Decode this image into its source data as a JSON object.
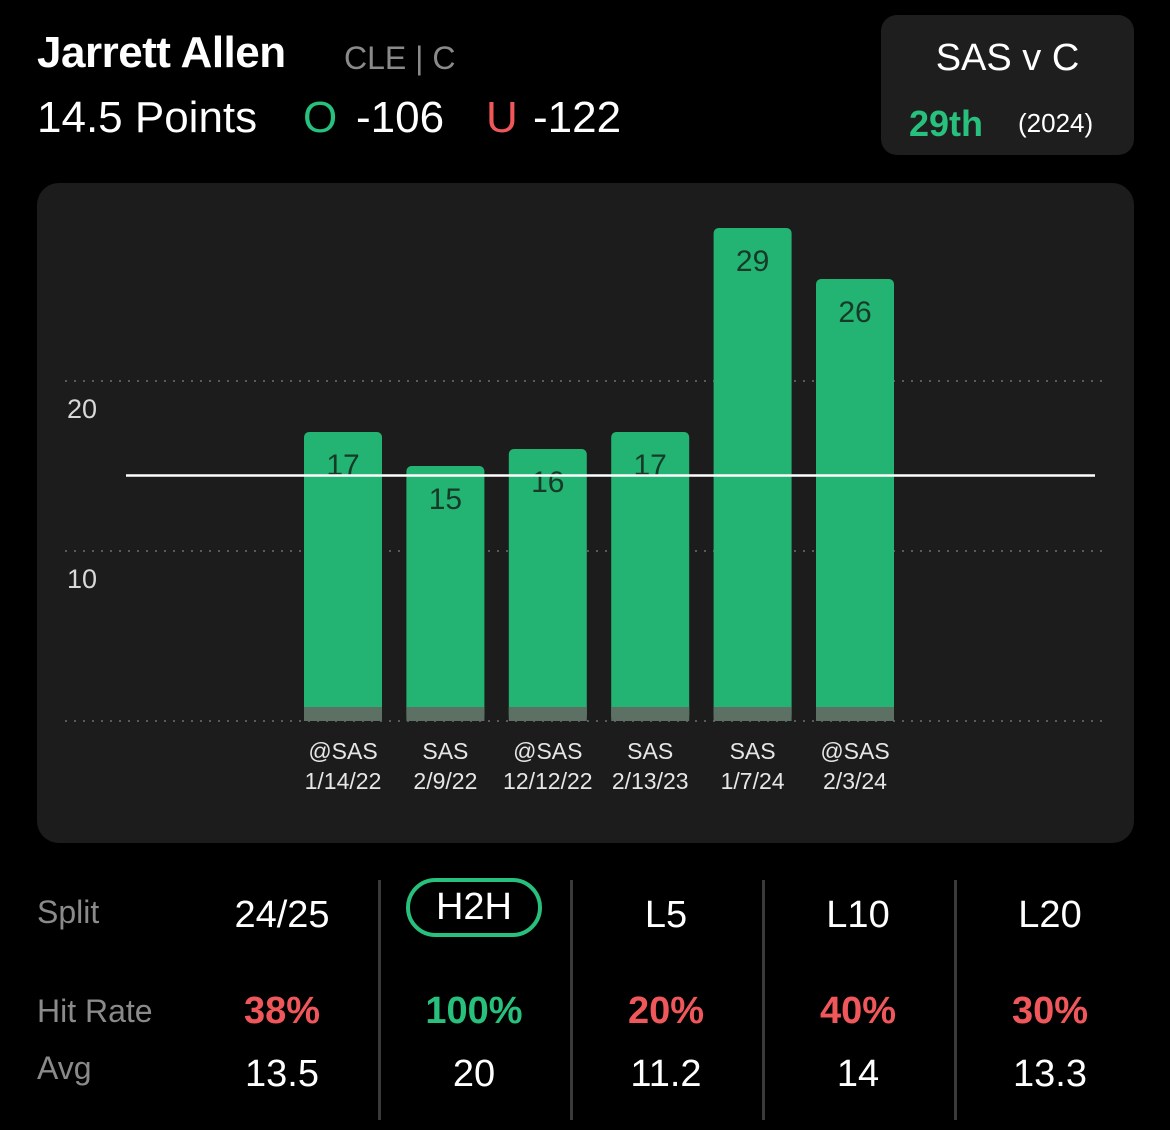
{
  "header": {
    "player_name": "Jarrett Allen",
    "team_position": "CLE | C",
    "prop_line": "14.5 Points",
    "over_label": "O",
    "over_odds": "-106",
    "under_label": "U",
    "under_odds": "-122"
  },
  "matchup": {
    "title": "SAS v C",
    "rank": "29th",
    "year": "(2024)"
  },
  "colors": {
    "green": "#27c07d",
    "red": "#f0575a",
    "bar": "#23b373",
    "bar_base": "#5d7064"
  },
  "chart_data": {
    "type": "bar",
    "categories": [
      [
        "@SAS",
        "1/14/22"
      ],
      [
        "SAS",
        "2/9/22"
      ],
      [
        "@SAS",
        "12/12/22"
      ],
      [
        "SAS",
        "2/13/23"
      ],
      [
        "SAS",
        "1/7/24"
      ],
      [
        "@SAS",
        "2/3/24"
      ]
    ],
    "values": [
      17,
      15,
      16,
      17,
      29,
      26
    ],
    "line_value": 14.5,
    "yticks": [
      10,
      20
    ],
    "ylim": [
      0,
      30
    ],
    "grid": true
  },
  "stats": {
    "labels": {
      "split": "Split",
      "hit_rate": "Hit Rate",
      "avg": "Avg"
    },
    "columns": [
      {
        "split": "24/25",
        "hit_rate": "38%",
        "hit_color": "red",
        "avg": "13.5",
        "active": false
      },
      {
        "split": "H2H",
        "hit_rate": "100%",
        "hit_color": "green",
        "avg": "20",
        "active": true
      },
      {
        "split": "L5",
        "hit_rate": "20%",
        "hit_color": "red",
        "avg": "11.2",
        "active": false
      },
      {
        "split": "L10",
        "hit_rate": "40%",
        "hit_color": "red",
        "avg": "14",
        "active": false
      },
      {
        "split": "L20",
        "hit_rate": "30%",
        "hit_color": "red",
        "avg": "13.3",
        "active": false
      }
    ]
  }
}
